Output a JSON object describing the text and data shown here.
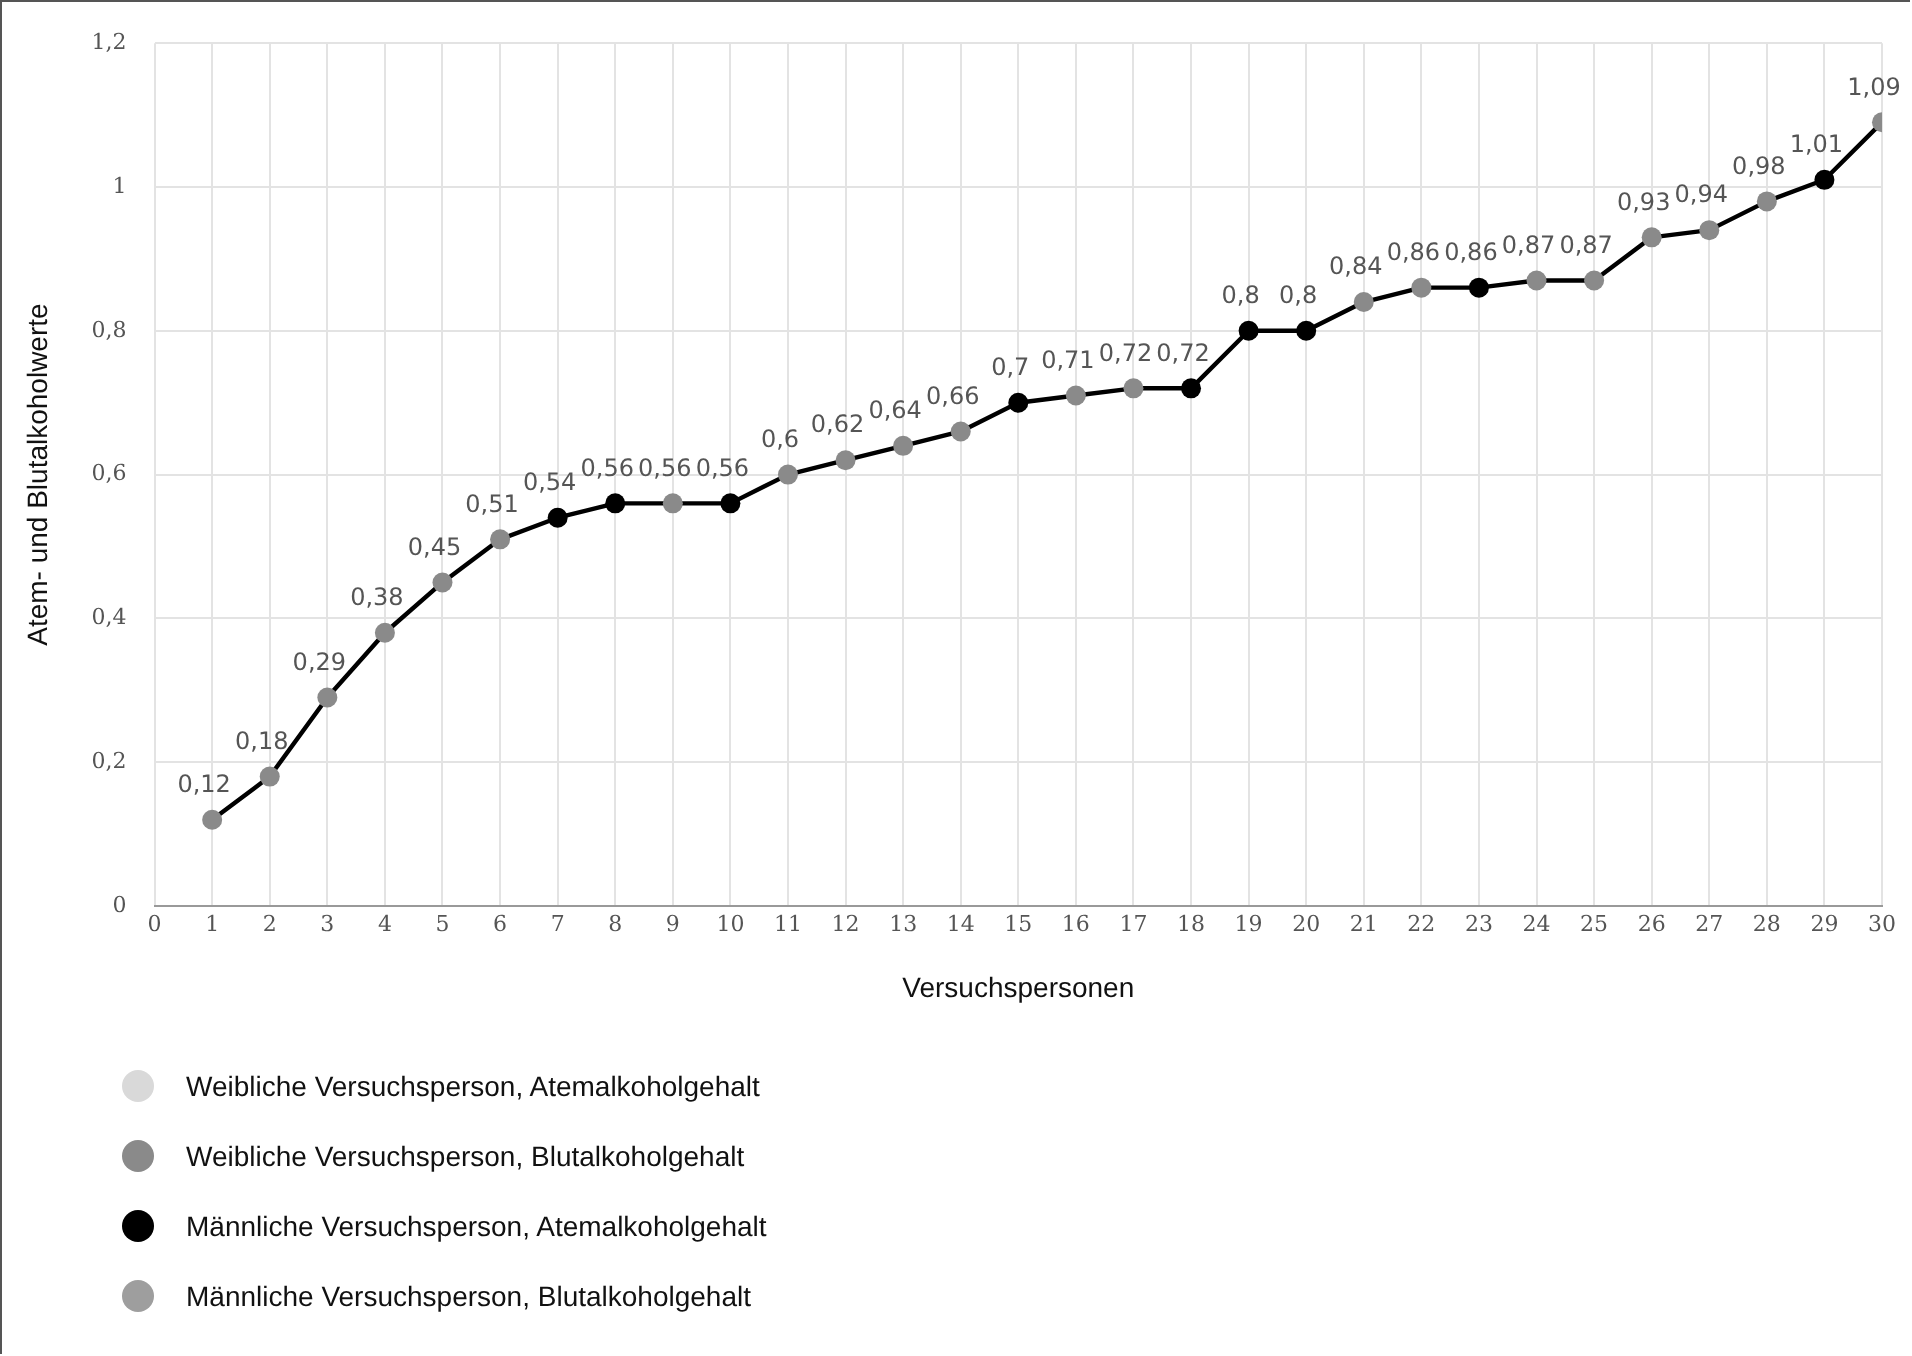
{
  "chart_data": {
    "type": "line",
    "xlabel": "Versuchspersonen",
    "ylabel": "Atem- und Blutalkoholwerte",
    "xlim": [
      0,
      30
    ],
    "xticks": [
      0,
      1,
      2,
      3,
      4,
      5,
      6,
      7,
      8,
      9,
      10,
      11,
      12,
      13,
      14,
      15,
      16,
      17,
      18,
      19,
      20,
      21,
      22,
      23,
      24,
      25,
      26,
      27,
      28,
      29,
      30
    ],
    "ylim": [
      0,
      1.2
    ],
    "yticks": [
      0,
      {
        "value": 0.2,
        "label": "0,2"
      },
      {
        "value": 0.4,
        "label": "0,4"
      },
      {
        "value": 0.6,
        "label": "0,6"
      },
      {
        "value": 0.8,
        "label": "0,8"
      },
      1,
      {
        "value": 1.2,
        "label": "1,2"
      }
    ],
    "grid": true,
    "legend": "bottom",
    "series": [
      {
        "color": "#000000",
        "marker": "none",
        "x": [
          1,
          2,
          3,
          4,
          5,
          6,
          7,
          8,
          9,
          10,
          11,
          12,
          13,
          14,
          15,
          16,
          17,
          18,
          19,
          20,
          21,
          22,
          23,
          24,
          25,
          26,
          27,
          28,
          29,
          30
        ],
        "values": [
          0.12,
          0.18,
          0.29,
          0.38,
          0.45,
          0.51,
          0.54,
          0.56,
          0.56,
          0.56,
          0.6,
          0.62,
          0.64,
          0.66,
          0.7,
          0.71,
          0.72,
          0.72,
          0.8,
          0.8,
          0.84,
          0.86,
          0.86,
          0.87,
          0.87,
          0.93,
          0.94,
          0.98,
          1.01,
          1.09
        ]
      },
      {
        "type": "scatter",
        "name": "Weibliche Versuchsperson, Atemalkoholgehalt",
        "color": "#d9d9d9",
        "marker": "circle"
      },
      {
        "type": "scatter",
        "name": "Weibliche Versuchsperson, Blutalkoholgehalt",
        "color": "#8a8a8a",
        "marker": "circle",
        "x": [
          1,
          2,
          3,
          4,
          5,
          6,
          9,
          11,
          12,
          13,
          14,
          16,
          17,
          21,
          22,
          24,
          25,
          26,
          27,
          28,
          30
        ],
        "values": [
          0.12,
          0.18,
          0.29,
          0.38,
          0.45,
          0.51,
          0.56,
          0.6,
          0.62,
          0.64,
          0.66,
          0.71,
          0.72,
          0.84,
          0.86,
          0.87,
          0.87,
          0.93,
          0.94,
          0.98,
          1.09
        ],
        "value_labels": [
          "0,12",
          "0,18",
          "0,29",
          "0,38",
          "0,45",
          "0,51",
          "0,56",
          "0,6",
          "0,62",
          "0,64",
          "0,66",
          "0,71",
          "0,72",
          "0,84",
          "0,86",
          "0,87",
          "0,87",
          "0,93",
          "0,94",
          "0,98",
          "1,09"
        ]
      },
      {
        "type": "scatter",
        "name": "Männliche Versuchsperson, Atemalkoholgehalt",
        "color": "#000000",
        "marker": "circle",
        "x": [
          7,
          8,
          10,
          15,
          18,
          19,
          20,
          23,
          29
        ],
        "values": [
          0.54,
          0.56,
          0.56,
          0.7,
          0.72,
          0.8,
          0.8,
          0.86,
          1.01
        ],
        "value_labels": [
          "0,54",
          "0,56",
          "0,56",
          "0,7",
          "0,72",
          "0,8",
          "0,8",
          "0,86",
          "1,01"
        ]
      },
      {
        "type": "scatter",
        "name": "Männliche Versuchsperson, Blutalkoholgehalt",
        "color": "#9e9e9e",
        "marker": "circle"
      }
    ]
  }
}
